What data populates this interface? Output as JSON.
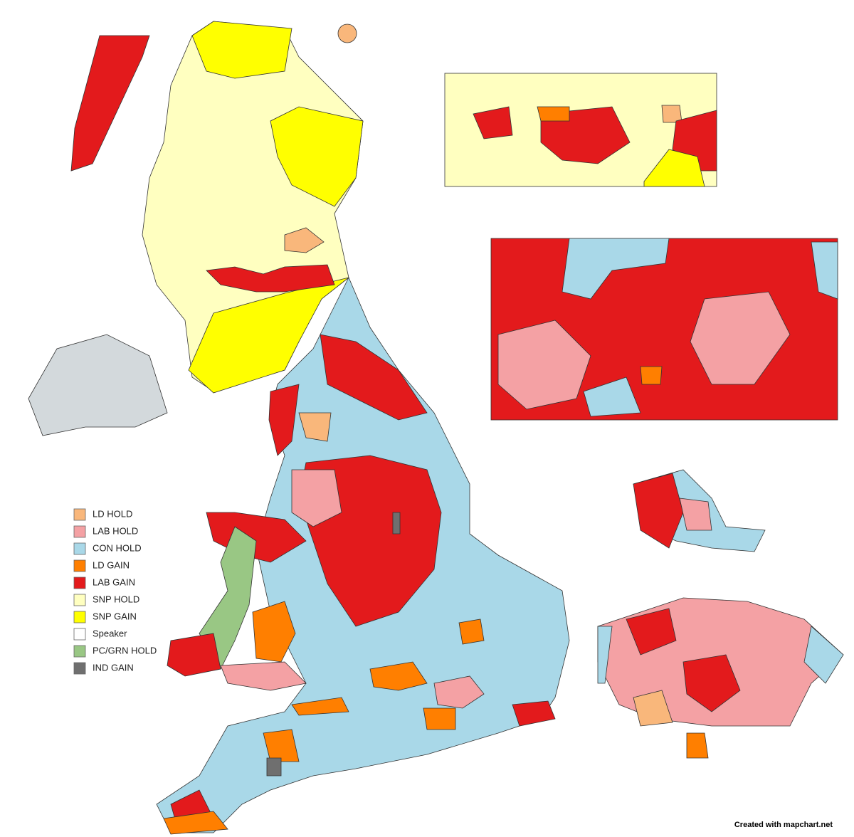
{
  "legend": {
    "items": [
      {
        "label": "LD HOLD",
        "color": "#f9b77b"
      },
      {
        "label": "LAB HOLD",
        "color": "#f4a1a4"
      },
      {
        "label": "CON HOLD",
        "color": "#a9d8e8"
      },
      {
        "label": "LD GAIN",
        "color": "#ff7f00"
      },
      {
        "label": "LAB GAIN",
        "color": "#e31a1c"
      },
      {
        "label": "SNP HOLD",
        "color": "#ffffc0"
      },
      {
        "label": "SNP GAIN",
        "color": "#ffff00"
      },
      {
        "label": "Speaker",
        "color": "#ffffff"
      },
      {
        "label": "PC/GRN HOLD",
        "color": "#99c784"
      },
      {
        "label": "IND GAIN",
        "color": "#6f6f6f"
      }
    ]
  },
  "credit": "Created with mapchart.net"
}
